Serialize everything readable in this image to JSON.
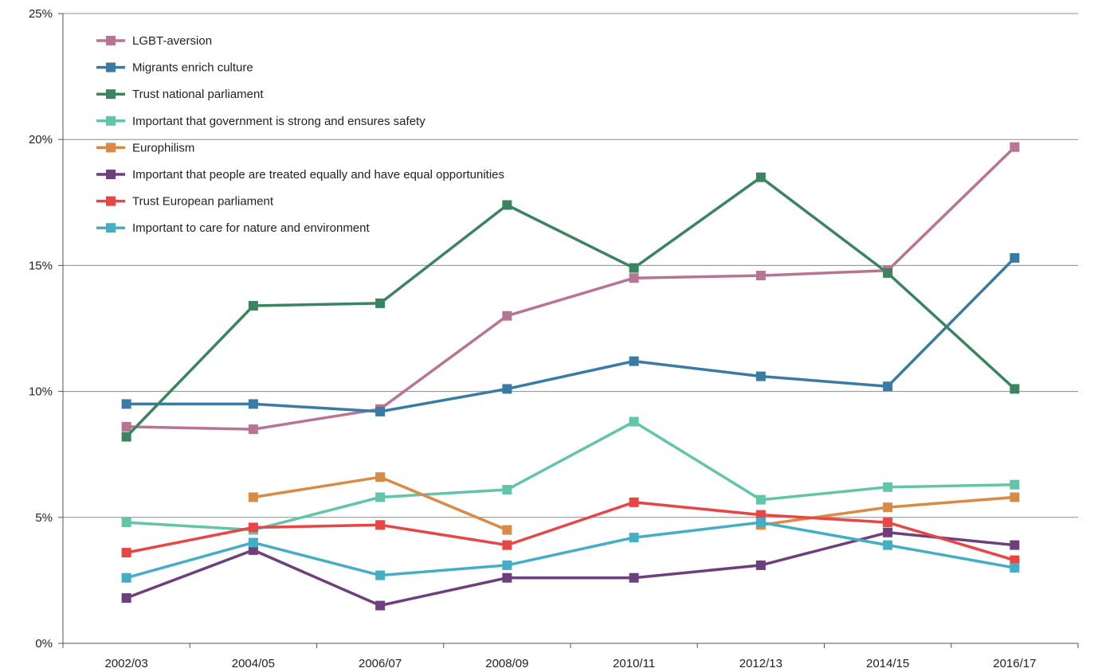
{
  "chart_data": {
    "type": "line",
    "title": "",
    "xlabel": "",
    "ylabel": "",
    "ylim": [
      0,
      25
    ],
    "yticks": [
      0,
      5,
      10,
      15,
      20,
      25
    ],
    "y_tick_labels": [
      "0%",
      "5%",
      "10%",
      "15%",
      "20%",
      "25%"
    ],
    "grid": "horizontal",
    "legend_position": "top-left",
    "categories": [
      "2002/03",
      "2004/05",
      "2006/07",
      "2008/09",
      "2010/11",
      "2012/13",
      "2014/15",
      "2016/17"
    ],
    "series": [
      {
        "name": "LGBT-aversion",
        "color": "#b87395",
        "values": [
          8.6,
          8.5,
          9.3,
          13.0,
          14.5,
          14.6,
          14.8,
          19.7
        ]
      },
      {
        "name": "Migrants enrich culture",
        "color": "#3a7ba6",
        "values": [
          9.5,
          9.5,
          9.2,
          10.1,
          11.2,
          10.6,
          10.2,
          15.3
        ]
      },
      {
        "name": "Trust national parliament",
        "color": "#3a8460",
        "values": [
          8.2,
          13.4,
          13.5,
          17.4,
          14.9,
          18.5,
          14.7,
          10.1
        ]
      },
      {
        "name": "Important that government is strong and ensures safety",
        "color": "#62c5a9",
        "values": [
          4.8,
          4.5,
          5.8,
          6.1,
          8.8,
          5.7,
          6.2,
          6.3
        ]
      },
      {
        "name": "Europhilism",
        "color": "#d98b45",
        "values": [
          null,
          5.8,
          6.6,
          4.5,
          null,
          4.7,
          5.4,
          5.8
        ]
      },
      {
        "name": "Important that people are treated equally and have equal opportunities",
        "color": "#6e3f7d",
        "values": [
          1.8,
          3.7,
          1.5,
          2.6,
          2.6,
          3.1,
          4.4,
          3.9
        ]
      },
      {
        "name": "Trust European parliament",
        "color": "#e84545",
        "values": [
          3.6,
          4.6,
          4.7,
          3.9,
          5.6,
          5.1,
          4.8,
          3.3
        ]
      },
      {
        "name": "Important to care for nature and environment",
        "color": "#44afc4",
        "values": [
          2.6,
          4.0,
          2.7,
          3.1,
          4.2,
          4.8,
          3.9,
          3.0
        ]
      }
    ]
  }
}
